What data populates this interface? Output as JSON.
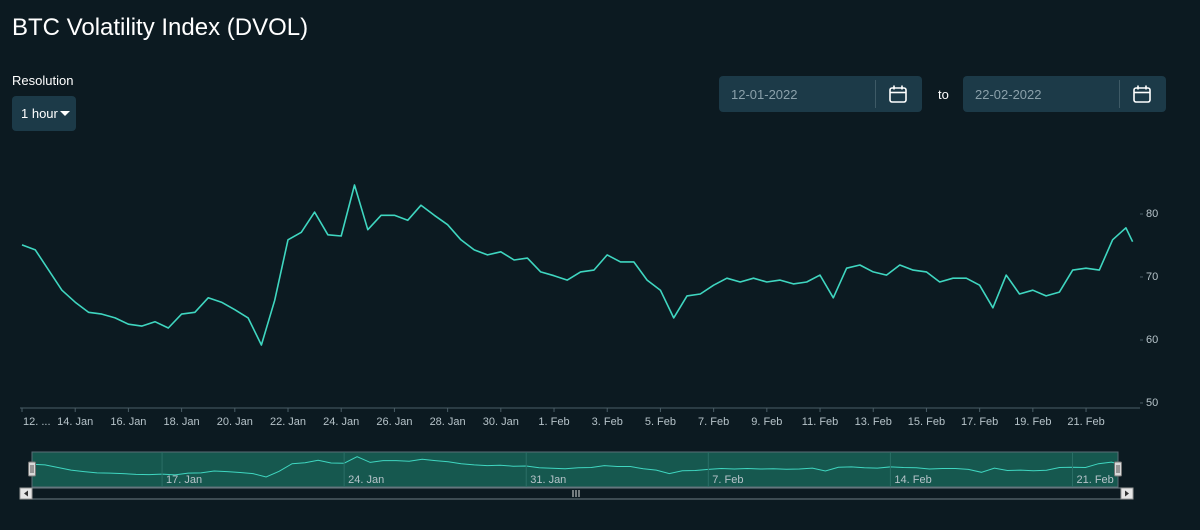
{
  "header": {
    "title": "BTC Volatility Index (DVOL)"
  },
  "controls": {
    "resolution_label": "Resolution",
    "resolution": "1 hour",
    "from": "12-01-2022",
    "to_label": "to",
    "to": "22-02-2022"
  },
  "chart_data": {
    "type": "line",
    "color": "#3fd6c0",
    "x": [
      "2022-01-12T00:00",
      "2022-01-12T12:00",
      "2022-01-13T00:00",
      "2022-01-13T12:00",
      "2022-01-14T00:00",
      "2022-01-14T12:00",
      "2022-01-15T00:00",
      "2022-01-15T12:00",
      "2022-01-16T00:00",
      "2022-01-16T12:00",
      "2022-01-17T00:00",
      "2022-01-17T12:00",
      "2022-01-18T00:00",
      "2022-01-18T12:00",
      "2022-01-19T00:00",
      "2022-01-19T12:00",
      "2022-01-20T00:00",
      "2022-01-20T12:00",
      "2022-01-21T00:00",
      "2022-01-21T12:00",
      "2022-01-22T00:00",
      "2022-01-22T12:00",
      "2022-01-23T00:00",
      "2022-01-23T12:00",
      "2022-01-24T00:00",
      "2022-01-24T12:00",
      "2022-01-25T00:00",
      "2022-01-25T12:00",
      "2022-01-26T00:00",
      "2022-01-26T12:00",
      "2022-01-27T00:00",
      "2022-01-27T12:00",
      "2022-01-28T00:00",
      "2022-01-28T12:00",
      "2022-01-29T00:00",
      "2022-01-29T12:00",
      "2022-01-30T00:00",
      "2022-01-30T12:00",
      "2022-01-31T00:00",
      "2022-01-31T12:00",
      "2022-02-01T00:00",
      "2022-02-01T12:00",
      "2022-02-02T00:00",
      "2022-02-02T12:00",
      "2022-02-03T00:00",
      "2022-02-03T12:00",
      "2022-02-04T00:00",
      "2022-02-04T12:00",
      "2022-02-05T00:00",
      "2022-02-05T12:00",
      "2022-02-06T00:00",
      "2022-02-06T12:00",
      "2022-02-07T00:00",
      "2022-02-07T12:00",
      "2022-02-08T00:00",
      "2022-02-08T12:00",
      "2022-02-09T00:00",
      "2022-02-09T12:00",
      "2022-02-10T00:00",
      "2022-02-10T12:00",
      "2022-02-11T00:00",
      "2022-02-11T12:00",
      "2022-02-12T00:00",
      "2022-02-12T12:00",
      "2022-02-13T00:00",
      "2022-02-13T12:00",
      "2022-02-14T00:00",
      "2022-02-14T12:00",
      "2022-02-15T00:00",
      "2022-02-15T12:00",
      "2022-02-16T00:00",
      "2022-02-16T12:00",
      "2022-02-17T00:00",
      "2022-02-17T12:00",
      "2022-02-18T00:00",
      "2022-02-18T12:00",
      "2022-02-19T00:00",
      "2022-02-19T12:00",
      "2022-02-20T00:00",
      "2022-02-20T12:00",
      "2022-02-21T00:00",
      "2022-02-21T12:00",
      "2022-02-22T00:00",
      "2022-02-22T12:00",
      "2022-02-22T18:00"
    ],
    "values": [
      75.1,
      74.3,
      71.1,
      67.9,
      66.0,
      64.4,
      64.1,
      63.5,
      62.5,
      62.2,
      62.9,
      61.9,
      64.1,
      64.4,
      66.7,
      66.0,
      64.8,
      63.5,
      59.2,
      66.3,
      75.9,
      77.1,
      80.3,
      76.7,
      76.5,
      84.6,
      77.5,
      79.8,
      79.8,
      79.0,
      81.4,
      79.8,
      78.3,
      75.9,
      74.3,
      73.5,
      74.0,
      72.7,
      73.0,
      70.8,
      70.2,
      69.5,
      70.8,
      71.1,
      73.5,
      72.4,
      72.4,
      69.5,
      67.9,
      63.5,
      67.0,
      67.3,
      68.7,
      69.8,
      69.2,
      69.8,
      69.2,
      69.5,
      68.9,
      69.2,
      70.3,
      66.7,
      71.4,
      71.9,
      70.8,
      70.3,
      71.9,
      71.1,
      70.8,
      69.2,
      69.8,
      69.8,
      68.7,
      65.1,
      70.3,
      67.3,
      67.9,
      67.0,
      67.6,
      71.1,
      71.4,
      71.1,
      75.9,
      77.8,
      75.6
    ],
    "xlim": [
      "2022-01-12T00:00",
      "2022-02-22T18:00"
    ],
    "xticks": [
      {
        "value": "2022-01-12T00:00",
        "label": "12. ..."
      },
      {
        "value": "2022-01-14T00:00",
        "label": "14. Jan"
      },
      {
        "value": "2022-01-16T00:00",
        "label": "16. Jan"
      },
      {
        "value": "2022-01-18T00:00",
        "label": "18. Jan"
      },
      {
        "value": "2022-01-20T00:00",
        "label": "20. Jan"
      },
      {
        "value": "2022-01-22T00:00",
        "label": "22. Jan"
      },
      {
        "value": "2022-01-24T00:00",
        "label": "24. Jan"
      },
      {
        "value": "2022-01-26T00:00",
        "label": "26. Jan"
      },
      {
        "value": "2022-01-28T00:00",
        "label": "28. Jan"
      },
      {
        "value": "2022-01-30T00:00",
        "label": "30. Jan"
      },
      {
        "value": "2022-02-01T00:00",
        "label": "1. Feb"
      },
      {
        "value": "2022-02-03T00:00",
        "label": "3. Feb"
      },
      {
        "value": "2022-02-05T00:00",
        "label": "5. Feb"
      },
      {
        "value": "2022-02-07T00:00",
        "label": "7. Feb"
      },
      {
        "value": "2022-02-09T00:00",
        "label": "9. Feb"
      },
      {
        "value": "2022-02-11T00:00",
        "label": "11. Feb"
      },
      {
        "value": "2022-02-13T00:00",
        "label": "13. Feb"
      },
      {
        "value": "2022-02-15T00:00",
        "label": "15. Feb"
      },
      {
        "value": "2022-02-17T00:00",
        "label": "17. Feb"
      },
      {
        "value": "2022-02-19T00:00",
        "label": "19. Feb"
      },
      {
        "value": "2022-02-21T00:00",
        "label": "21. Feb"
      }
    ],
    "ylim": [
      49.2,
      88
    ],
    "yticks": [
      50,
      60,
      70,
      80
    ]
  },
  "navigator": {
    "xticks": [
      {
        "value": "2022-01-17T00:00",
        "label": "17. Jan"
      },
      {
        "value": "2022-01-24T00:00",
        "label": "24. Jan"
      },
      {
        "value": "2022-01-31T00:00",
        "label": "31. Jan"
      },
      {
        "value": "2022-02-07T00:00",
        "label": "7. Feb"
      },
      {
        "value": "2022-02-14T00:00",
        "label": "14. Feb"
      },
      {
        "value": "2022-02-21T00:00",
        "label": "21. Feb"
      }
    ]
  }
}
